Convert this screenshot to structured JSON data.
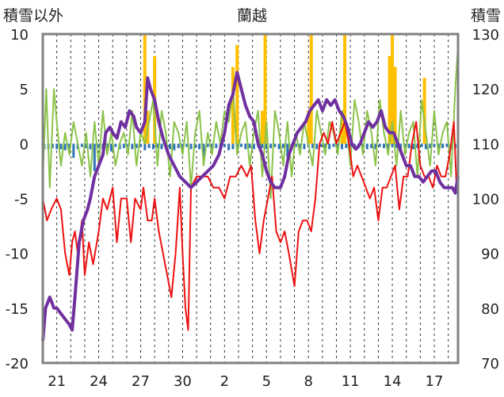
{
  "chart_data": {
    "type": "line",
    "title": "蘭越",
    "left_axis_label": "積雪以外",
    "right_axis_label": "積雪",
    "left_ylim": [
      -20,
      10
    ],
    "left_yticks": [
      10,
      5,
      0,
      -5,
      -10,
      -15,
      -20
    ],
    "right_ylim": [
      70,
      130
    ],
    "right_yticks": [
      130,
      120,
      110,
      100,
      90,
      80,
      70
    ],
    "x_tick_labels": [
      "21",
      "24",
      "27",
      "30",
      "2",
      "5",
      "8",
      "11",
      "14",
      "17"
    ],
    "x_tick_days": [
      1,
      4,
      7,
      10,
      13,
      16,
      19,
      22,
      25,
      28
    ],
    "x_range_days": [
      0,
      29.7
    ],
    "grid": "vertical dashed lines at every day",
    "colors": {
      "temperature": "#ee1111",
      "wind": "#8bc34a",
      "snow_depth": "#7030a0",
      "precip": "#ffc000",
      "snow_change": "#2e75b6",
      "frame": "#808080"
    },
    "series": [
      {
        "key": "snow_depth",
        "axis": "right",
        "x": [
          0,
          0.2,
          0.5,
          0.8,
          1.0,
          1.3,
          1.6,
          1.9,
          2.1,
          2.3,
          2.6,
          2.9,
          3.2,
          3.4,
          3.7,
          4.0,
          4.3,
          4.5,
          4.8,
          5.0,
          5.3,
          5.6,
          5.9,
          6.2,
          6.5,
          6.7,
          7.0,
          7.3,
          7.5,
          7.7,
          8.0,
          8.3,
          8.6,
          9.0,
          9.4,
          9.8,
          10.2,
          10.6,
          11.0,
          11.4,
          11.8,
          12.2,
          12.6,
          13.0,
          13.3,
          13.6,
          13.9,
          14.2,
          14.5,
          14.8,
          15.1,
          15.4,
          15.7,
          16.0,
          16.3,
          16.6,
          17.0,
          17.3,
          17.6,
          17.9,
          18.2,
          18.5,
          18.8,
          19.1,
          19.4,
          19.7,
          20.0,
          20.3,
          20.6,
          20.9,
          21.2,
          21.5,
          21.8,
          22.1,
          22.4,
          22.7,
          23.0,
          23.3,
          23.6,
          23.9,
          24.2,
          24.5,
          24.8,
          25.1,
          25.4,
          25.7,
          26.0,
          26.3,
          26.6,
          26.9,
          27.2,
          27.5,
          27.8,
          28.1,
          28.4,
          28.7,
          29.0,
          29.3,
          29.5,
          29.7
        ],
        "y": [
          74,
          80,
          82,
          80,
          80,
          79,
          78,
          77,
          76,
          82,
          92,
          96,
          98,
          100,
          104,
          106,
          108,
          112,
          113,
          112,
          111,
          114,
          113,
          116,
          115,
          113,
          112,
          114,
          122,
          120,
          118,
          114,
          111,
          108,
          106,
          104,
          103,
          102,
          103,
          104,
          105,
          106,
          108,
          112,
          117,
          119,
          123,
          120,
          117,
          115,
          114,
          110,
          108,
          105,
          103,
          102,
          102,
          104,
          108,
          110,
          112,
          113,
          114,
          116,
          117,
          118,
          116,
          118,
          117,
          118,
          116,
          115,
          113,
          110,
          109,
          110,
          112,
          114,
          113,
          114,
          116,
          113,
          112,
          112,
          110,
          108,
          106,
          106,
          104,
          104,
          103,
          104,
          105,
          105,
          103,
          102,
          102,
          102,
          101,
          104
        ]
      },
      {
        "key": "temperature",
        "axis": "left",
        "x": [
          0,
          0.3,
          0.6,
          1.0,
          1.3,
          1.6,
          1.9,
          2.1,
          2.3,
          2.5,
          2.8,
          3.0,
          3.3,
          3.6,
          4.0,
          4.3,
          4.6,
          5.0,
          5.3,
          5.6,
          6.0,
          6.3,
          6.6,
          7.0,
          7.2,
          7.5,
          7.8,
          8.0,
          8.3,
          8.6,
          8.9,
          9.2,
          9.5,
          9.8,
          10.0,
          10.2,
          10.4,
          10.6,
          11.0,
          11.4,
          11.8,
          12.2,
          12.6,
          13.0,
          13.4,
          13.8,
          14.2,
          14.6,
          14.9,
          15.2,
          15.5,
          15.8,
          16.1,
          16.4,
          16.7,
          17.0,
          17.3,
          17.6,
          18.0,
          18.3,
          18.6,
          18.9,
          19.2,
          19.5,
          19.8,
          20.1,
          20.4,
          20.7,
          21.0,
          21.3,
          21.6,
          21.9,
          22.2,
          22.5,
          22.8,
          23.1,
          23.4,
          23.7,
          24.0,
          24.3,
          24.6,
          24.9,
          25.2,
          25.5,
          25.8,
          26.1,
          26.4,
          26.7,
          27.0,
          27.3,
          27.6,
          27.9,
          28.2,
          28.5,
          28.8,
          29.1,
          29.4,
          29.6
        ],
        "y": [
          -5,
          -7,
          -6,
          -5,
          -6,
          -10,
          -12,
          -9,
          -8,
          -10,
          -7,
          -12,
          -9,
          -11,
          -8,
          -5,
          -6,
          -4,
          -9,
          -5,
          -5,
          -9,
          -5,
          -6,
          -4,
          -7,
          -7,
          -5,
          -8,
          -10,
          -12,
          -14,
          -10,
          -4,
          -10,
          -15,
          -17,
          -4,
          -3,
          -3,
          -3,
          -4,
          -4,
          -5,
          -3,
          -3,
          -2,
          -3,
          -2,
          -7,
          -10,
          -7,
          -5,
          -3,
          -8,
          -9,
          -8,
          -10,
          -13,
          -8,
          -7,
          -7,
          -8,
          -5,
          0,
          1,
          0,
          2,
          0,
          1,
          2,
          0,
          -3,
          -2,
          -3,
          -4,
          -5,
          -4,
          -7,
          -4,
          -4,
          -3,
          -2,
          -6,
          -3,
          -3,
          0,
          2,
          -2,
          -3,
          -3,
          -4,
          -2,
          -3,
          -3,
          -1,
          2,
          -4
        ]
      },
      {
        "key": "wind",
        "axis": "left",
        "x": [
          0,
          0.25,
          0.5,
          0.8,
          1.0,
          1.3,
          1.6,
          1.9,
          2.2,
          2.5,
          2.8,
          3.1,
          3.4,
          3.7,
          4.0,
          4.3,
          4.6,
          4.9,
          5.2,
          5.5,
          5.8,
          6.1,
          6.4,
          6.7,
          7.0,
          7.3,
          7.6,
          7.9,
          8.2,
          8.5,
          8.8,
          9.1,
          9.4,
          9.7,
          10.0,
          10.3,
          10.6,
          10.9,
          11.2,
          11.5,
          11.8,
          12.1,
          12.4,
          12.7,
          13.0,
          13.3,
          13.6,
          13.9,
          14.2,
          14.5,
          14.8,
          15.1,
          15.4,
          15.7,
          16.0,
          16.3,
          16.6,
          16.9,
          17.2,
          17.5,
          17.8,
          18.1,
          18.4,
          18.7,
          19.0,
          19.3,
          19.6,
          19.9,
          20.2,
          20.5,
          20.8,
          21.1,
          21.4,
          21.7,
          22.0,
          22.3,
          22.6,
          22.9,
          23.2,
          23.5,
          23.8,
          24.1,
          24.4,
          24.7,
          25.0,
          25.3,
          25.6,
          25.9,
          26.2,
          26.5,
          26.8,
          27.1,
          27.4,
          27.7,
          28.0,
          28.3,
          28.6,
          28.9,
          29.2,
          29.5,
          29.7
        ],
        "y": [
          -3,
          5,
          -4,
          5,
          2,
          -2,
          1,
          -1,
          2,
          0,
          -2,
          1,
          -3,
          2,
          -2,
          3,
          -1,
          1,
          -2,
          0,
          1,
          -1,
          3,
          -2,
          1,
          0,
          2,
          4,
          -2,
          3,
          1,
          -3,
          2,
          1,
          -1,
          2,
          -4,
          1,
          3,
          -2,
          1,
          -1,
          2,
          0,
          3,
          2,
          5,
          -1,
          1,
          2,
          -2,
          1,
          3,
          -3,
          2,
          -5,
          3,
          1,
          -2,
          2,
          -3,
          1,
          -1,
          2,
          0,
          -2,
          3,
          1,
          -1,
          2,
          1,
          -1,
          3,
          2,
          -2,
          4,
          2,
          -1,
          3,
          1,
          -2,
          4,
          1,
          -1,
          2,
          -2,
          3,
          -1,
          1,
          2,
          -3,
          4,
          1,
          -2,
          3,
          -1,
          1,
          2,
          -3,
          5,
          9
        ]
      },
      {
        "key": "precip",
        "axis": "left",
        "style": "bars",
        "x": [
          7.3,
          7.5,
          8.0,
          13.6,
          13.9,
          15.7,
          15.9,
          19.0,
          19.2,
          21.4,
          21.6,
          24.8,
          25.0,
          25.2,
          27.3
        ],
        "y": [
          10,
          3,
          8,
          7,
          9,
          3,
          10,
          3,
          10,
          3,
          10,
          8,
          10,
          7,
          6
        ]
      },
      {
        "key": "snow_change",
        "axis": "left",
        "style": "bars",
        "x": [
          0.1,
          0.4,
          0.7,
          1.0,
          1.3,
          1.6,
          1.9,
          2.2,
          2.5,
          2.8,
          3.1,
          3.4,
          3.7,
          4.0,
          4.3,
          4.6,
          4.9,
          5.2,
          5.5,
          5.8,
          6.1,
          6.4,
          6.7,
          7.0,
          7.3,
          7.6,
          7.9,
          8.2,
          8.5,
          8.8,
          9.1,
          9.4,
          9.7,
          10.0,
          10.3,
          10.6,
          10.9,
          11.2,
          11.5,
          11.8,
          12.1,
          12.4,
          12.7,
          13.0,
          13.3,
          13.6,
          13.9,
          14.2,
          14.5,
          14.8,
          15.1,
          15.4,
          15.7,
          16.0,
          16.3,
          16.6,
          16.9,
          17.2,
          17.5,
          17.8,
          18.1,
          18.4,
          18.7,
          19.0,
          19.3,
          19.6,
          19.9,
          20.2,
          20.5,
          20.8,
          21.1,
          21.4,
          21.7,
          22.0,
          22.3,
          22.6,
          22.9,
          23.2,
          23.5,
          23.8,
          24.1,
          24.4,
          24.7,
          25.0,
          25.3,
          25.6,
          25.9,
          26.2,
          26.5,
          26.8,
          27.1,
          27.4,
          27.7,
          28.0,
          28.3,
          28.6,
          28.9,
          29.2,
          29.5
        ],
        "y": [
          -0.5,
          -0.5,
          -0.4,
          -0.5,
          -0.5,
          -0.6,
          -0.5,
          -1.3,
          -0.5,
          -0.3,
          -0.4,
          -0.5,
          -2.5,
          -0.4,
          -0.5,
          -0.5,
          -0.7,
          -0.3,
          -0.5,
          -0.4,
          -0.3,
          -0.5,
          -0.4,
          -0.3,
          -0.6,
          -0.4,
          -0.5,
          -0.4,
          -0.5,
          -0.3,
          -0.5,
          -0.6,
          -0.4,
          -0.5,
          -0.3,
          -0.5,
          -0.4,
          -0.5,
          -1.5,
          -0.3,
          -0.5,
          -0.4,
          -0.5,
          -0.3,
          -0.6,
          -0.5,
          -0.4,
          -0.3,
          -0.5,
          -0.4,
          -0.5,
          -0.3,
          -0.4,
          -0.5,
          -0.4,
          -0.3,
          -0.5,
          -0.4,
          -1.2,
          -0.5,
          -0.3,
          -0.4,
          -0.5,
          -0.3,
          -0.4,
          -0.5,
          -0.3,
          -0.4,
          -0.5,
          -0.3,
          -0.4,
          -0.5,
          -0.4,
          -0.3,
          -0.5,
          -0.4,
          -0.3,
          -0.5,
          -0.4,
          -0.5,
          -0.3,
          -0.4,
          -0.5,
          -0.3,
          -0.4,
          -0.5,
          -0.3,
          -0.4,
          -0.5,
          -0.4,
          -0.3,
          -0.5,
          -0.4,
          -0.3,
          -0.5,
          -0.4,
          -0.3,
          -0.5,
          -0.4
        ]
      }
    ]
  }
}
